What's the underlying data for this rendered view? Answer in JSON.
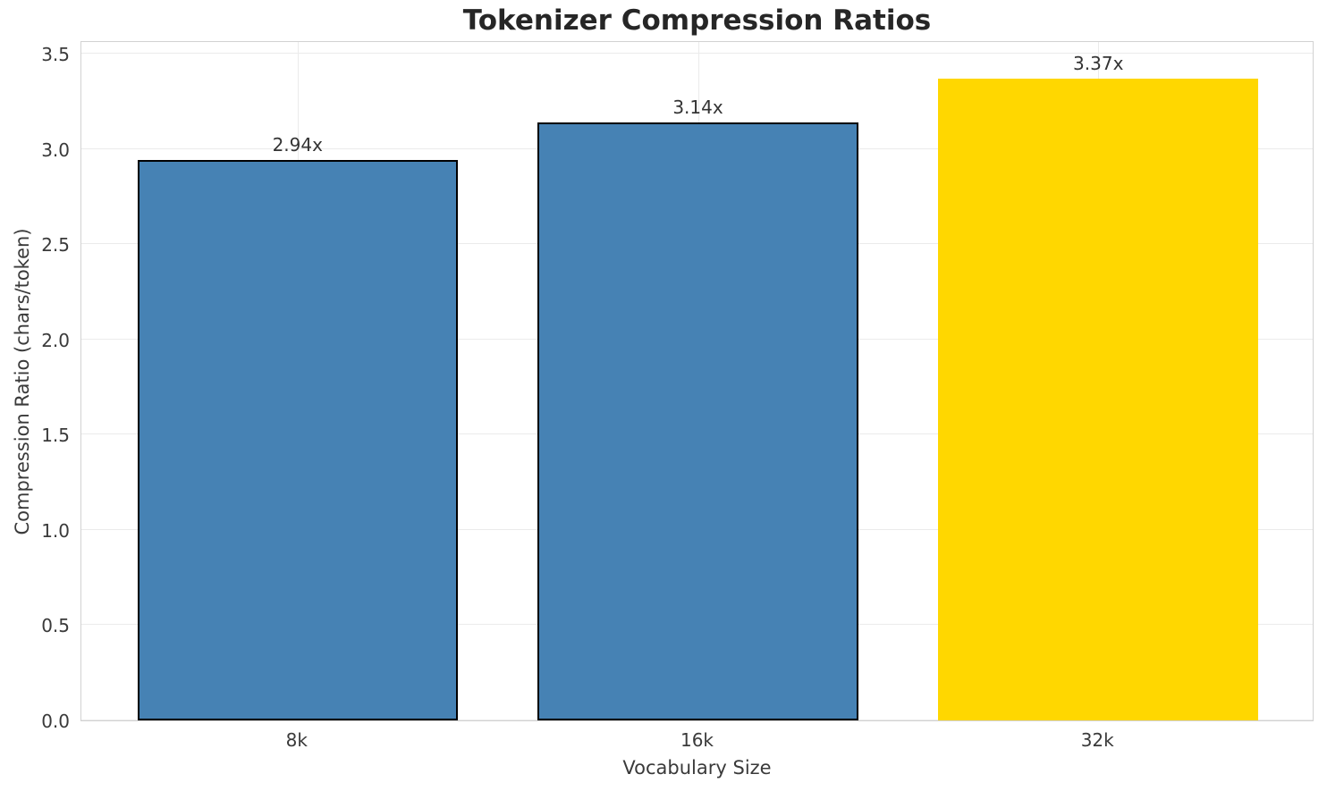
{
  "figure": {
    "background": "#ffffff"
  },
  "chart_data": {
    "type": "bar",
    "title": "Tokenizer Compression Ratios",
    "xlabel": "Vocabulary Size",
    "ylabel": "Compression Ratio (chars/token)",
    "categories": [
      "8k",
      "16k",
      "32k"
    ],
    "values": [
      2.94,
      3.14,
      3.37
    ],
    "bar_labels": [
      "2.94x",
      "3.14x",
      "3.37x"
    ],
    "bar_colors": [
      "#4682b4",
      "#4682b4",
      "#ffd700"
    ],
    "bar_edge_colors": [
      "#000000",
      "#000000",
      "none"
    ],
    "bar_width_fraction": 0.8,
    "xlim": [
      -0.54,
      2.54
    ],
    "ylim": [
      0,
      3.57
    ],
    "yticks": [
      0.0,
      0.5,
      1.0,
      1.5,
      2.0,
      2.5,
      3.0,
      3.5
    ],
    "ytick_labels": [
      "0.0",
      "0.5",
      "1.0",
      "1.5",
      "2.0",
      "2.5",
      "3.0",
      "3.5"
    ],
    "grid": true,
    "legend_position": "none",
    "colors": {
      "grid": "#ebebeb",
      "spine": "#d2d2d2",
      "text": "#3a3a3a",
      "title": "#262626"
    }
  }
}
